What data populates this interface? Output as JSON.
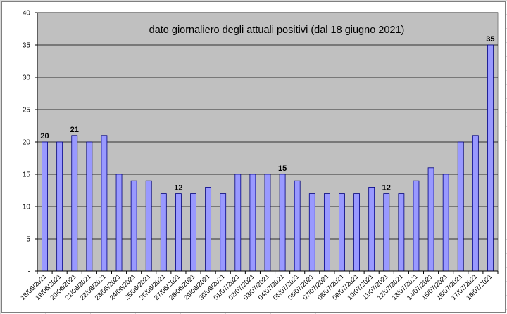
{
  "chart_data": {
    "type": "bar",
    "title": "dato giornaliero degli attuali positivi (dal 18 giugno 2021)",
    "xlabel": "",
    "ylabel": "",
    "ylim": [
      0,
      40
    ],
    "yticks": [
      0,
      5,
      10,
      15,
      20,
      25,
      30,
      35,
      40
    ],
    "y_tick_labels": [
      "-",
      "5",
      "10",
      "15",
      "20",
      "25",
      "30",
      "35",
      "40"
    ],
    "grid": true,
    "legend": "none",
    "categories": [
      "18/06/2021",
      "19/06/2021",
      "20/06/2021",
      "21/06/2021",
      "22/06/2021",
      "23/06/2021",
      "24/06/2021",
      "25/06/2021",
      "26/06/2021",
      "27/06/2021",
      "28/06/2021",
      "29/06/2021",
      "30/06/2021",
      "01/07/2021",
      "02/07/2021",
      "03/07/2021",
      "04/07/2021",
      "05/07/2021",
      "06/07/2021",
      "07/07/2021",
      "08/07/2021",
      "09/07/2021",
      "10/07/2021",
      "11/07/2021",
      "12/07/2021",
      "13/07/2021",
      "14/07/2021",
      "15/07/2021",
      "16/07/2021",
      "17/07/2021",
      "18/07/2021"
    ],
    "values": [
      20,
      20,
      21,
      20,
      21,
      15,
      14,
      14,
      12,
      12,
      12,
      13,
      12,
      15,
      15,
      15,
      15,
      14,
      12,
      12,
      12,
      12,
      13,
      12,
      12,
      14,
      16,
      15,
      20,
      21,
      35
    ],
    "data_labels": [
      {
        "index": 0,
        "text": "20"
      },
      {
        "index": 2,
        "text": "21"
      },
      {
        "index": 9,
        "text": "12"
      },
      {
        "index": 16,
        "text": "15"
      },
      {
        "index": 23,
        "text": "12"
      },
      {
        "index": 30,
        "text": "35"
      }
    ],
    "colors": {
      "plot_background": "#c0c0c0",
      "bar_fill": "#9999ff",
      "bar_stroke": "#000080",
      "gridline": "#000000"
    }
  }
}
